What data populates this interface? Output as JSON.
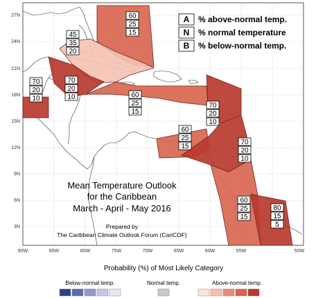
{
  "map": {
    "title_lines": [
      "Mean Temperature Outlook",
      "for the Caribbean",
      "March - April - May 2016"
    ],
    "prepared_by": [
      "Prepared by",
      "The Caribbean Climate Outlook Forum (CariCOF)"
    ],
    "lat_labels": [
      "27N",
      "24N",
      "21N",
      "18N",
      "15N",
      "12N",
      "9N",
      "6N",
      "3N"
    ],
    "lon_labels": [
      "90W",
      "85W",
      "80W",
      "75W",
      "70W",
      "65W",
      "60W",
      "55W",
      "50W"
    ],
    "legend": [
      {
        "key": "A",
        "desc": "% above-normal temp."
      },
      {
        "key": "N",
        "desc": "% normal temperature"
      },
      {
        "key": "B",
        "desc": "% below-normal temp."
      }
    ],
    "regions": [
      {
        "name": "bahamas-region",
        "above": 60,
        "normal": 25,
        "below": 15,
        "color": "#d8644c"
      },
      {
        "name": "cuba-region",
        "above": 45,
        "normal": 35,
        "below": 20,
        "color": "#f4c2b2"
      },
      {
        "name": "western-caribbean-region",
        "above": 70,
        "normal": 20,
        "below": 10,
        "color": "#b8392e"
      },
      {
        "name": "central-america-region",
        "above": 70,
        "normal": 20,
        "below": 10,
        "color": "#b8392e"
      },
      {
        "name": "greater-antilles-region",
        "above": 60,
        "normal": 25,
        "below": 15,
        "color": "#d8644c"
      },
      {
        "name": "leeward-islands-region",
        "above": 70,
        "normal": 20,
        "below": 10,
        "color": "#b8392e"
      },
      {
        "name": "southern-caribbean-region",
        "above": 60,
        "normal": 25,
        "below": 15,
        "color": "#d8644c"
      },
      {
        "name": "windward-islands-region",
        "above": 70,
        "normal": 20,
        "below": 10,
        "color": "#b8392e"
      },
      {
        "name": "guyana-region",
        "above": 60,
        "normal": 25,
        "below": 15,
        "color": "#d8644c"
      },
      {
        "name": "suriname-region",
        "above": 80,
        "normal": 15,
        "below": 5,
        "color": "#b8392e"
      }
    ]
  },
  "probability_scale": {
    "title": "Probability (%) of Most Likely Category",
    "below_label": "Below-normal temp.",
    "normal_label": "Normal temp.",
    "above_label": "Above-normal temp.",
    "below_colors": [
      "#2f3f82",
      "#5a6bb0",
      "#9098cc",
      "#c4c8e6",
      "#e6e8f5"
    ],
    "normal_colors": [
      "#c8c8c8"
    ],
    "above_colors": [
      "#fde3da",
      "#f8c0ad",
      "#ea8a72",
      "#d8644c",
      "#b8392e"
    ]
  }
}
